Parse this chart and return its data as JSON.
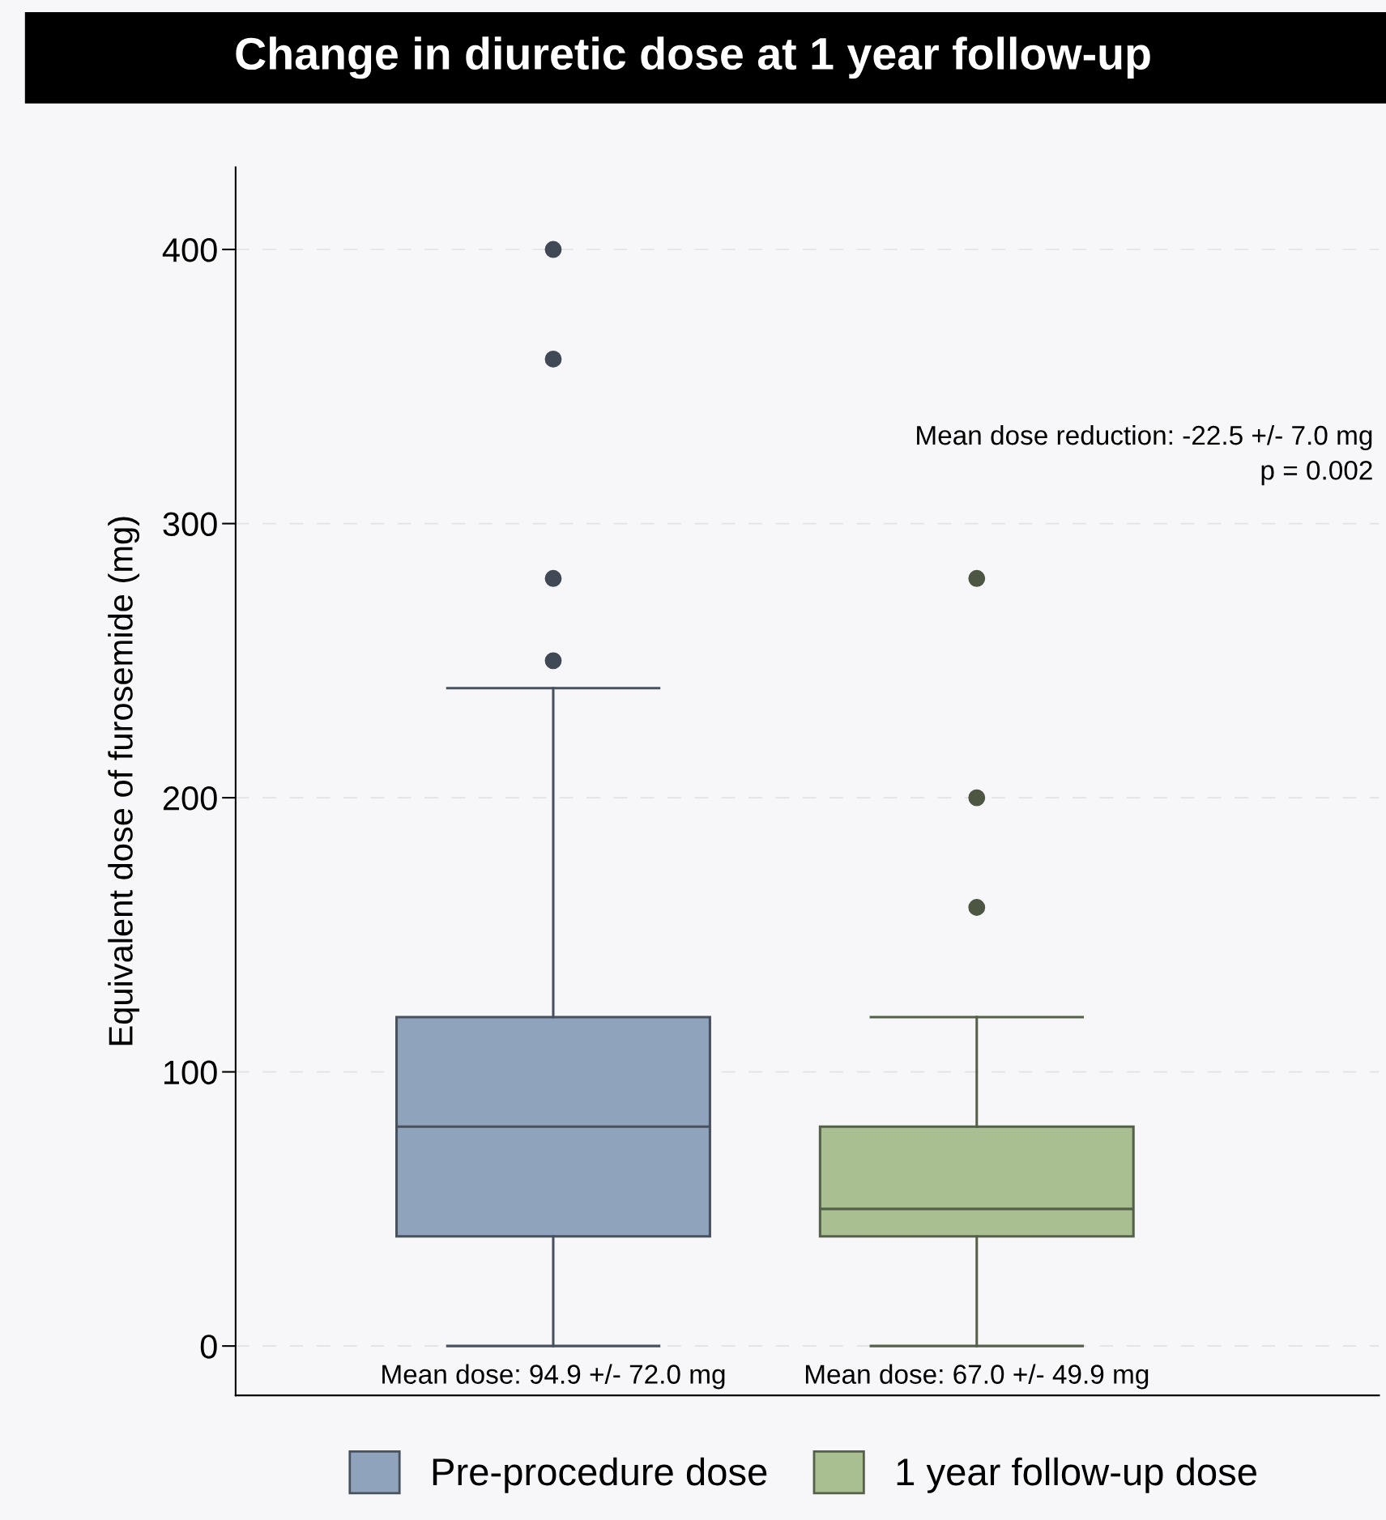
{
  "chart_data": {
    "type": "box",
    "title": "Change in diuretic dose at 1 year follow-up",
    "ylabel": "Equivalent dose of furosemide (mg)",
    "categories": [
      null,
      null
    ],
    "series": [
      {
        "name": "Pre-procedure dose",
        "color": "#8fa3bd",
        "boxes": [
          {
            "low": 0,
            "q1": 40,
            "median": 80,
            "q3": 120,
            "high": 240,
            "outliers": [
              250,
              280,
              360,
              400
            ]
          },
          null
        ]
      },
      {
        "name": "1 year follow-up dose",
        "color": "#a9bf92",
        "boxes": [
          null,
          {
            "low": 0,
            "q1": 40,
            "median": 50,
            "q3": 80,
            "high": 120,
            "outliers": [
              160,
              200,
              280
            ]
          }
        ]
      }
    ],
    "ylim": [
      -18,
      430
    ],
    "yticks": [
      0,
      100,
      200,
      300,
      400
    ],
    "grid": "y",
    "legend": "bottom",
    "tick_labels": "y",
    "annotations": [
      "Mean dose reduction: -22.5 +/- 7.0 mg\np = 0.002",
      "Mean dose: 94.9 +/- 72.0 mg",
      "Mean dose: 67.0 +/- 49.9 mg"
    ]
  }
}
